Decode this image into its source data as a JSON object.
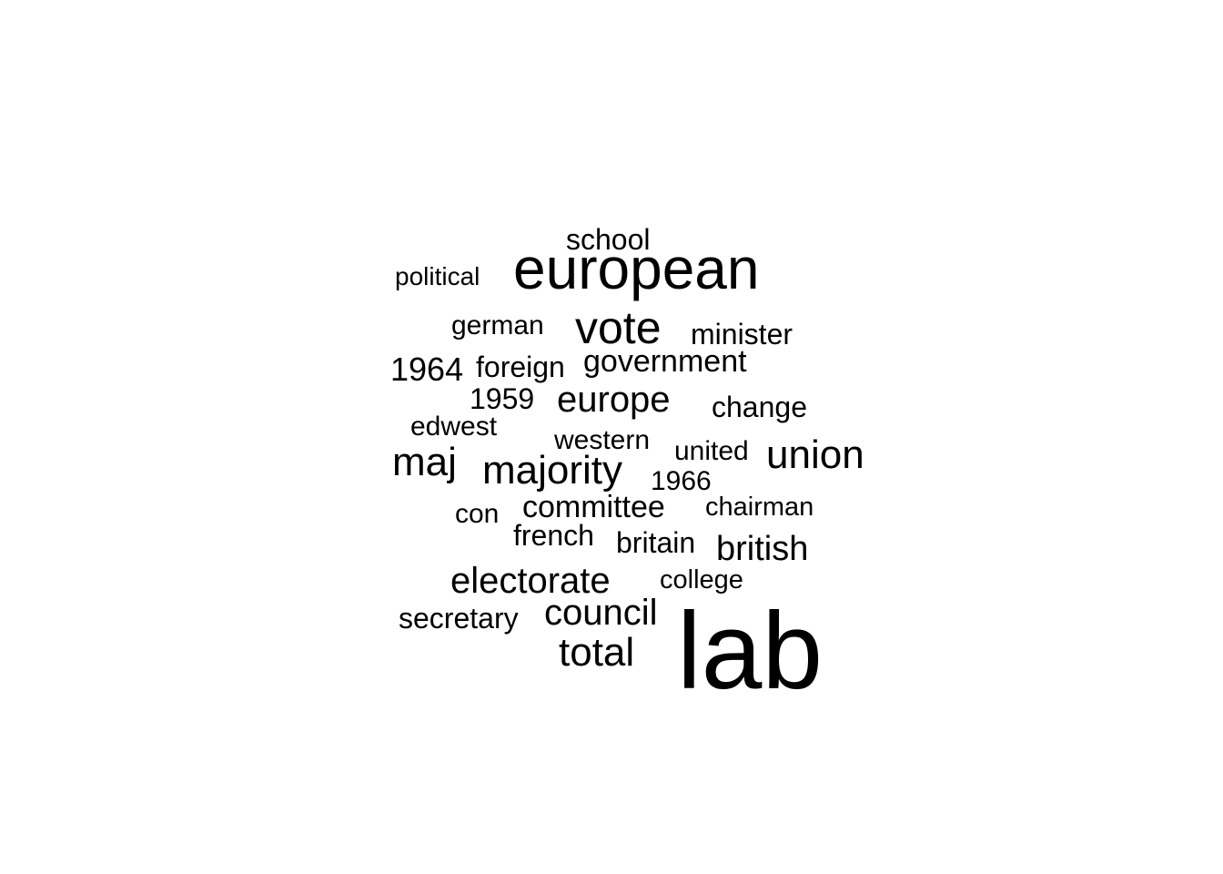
{
  "chart_data": {
    "type": "wordcloud",
    "color": "#000000",
    "words": [
      {
        "text": "lab",
        "weight": 120
      },
      {
        "text": "european",
        "weight": 64
      },
      {
        "text": "vote",
        "weight": 50
      },
      {
        "text": "union",
        "weight": 44
      },
      {
        "text": "maj",
        "weight": 44
      },
      {
        "text": "majority",
        "weight": 44
      },
      {
        "text": "total",
        "weight": 44
      },
      {
        "text": "electorate",
        "weight": 40
      },
      {
        "text": "europe",
        "weight": 40
      },
      {
        "text": "council",
        "weight": 40
      },
      {
        "text": "british",
        "weight": 38
      },
      {
        "text": "1964",
        "weight": 36
      },
      {
        "text": "committee",
        "weight": 34
      },
      {
        "text": "government",
        "weight": 34
      },
      {
        "text": "change",
        "weight": 32
      },
      {
        "text": "minister",
        "weight": 32
      },
      {
        "text": "school",
        "weight": 32
      },
      {
        "text": "foreign",
        "weight": 32
      },
      {
        "text": "1959",
        "weight": 32
      },
      {
        "text": "french",
        "weight": 32
      },
      {
        "text": "britain",
        "weight": 32
      },
      {
        "text": "secretary",
        "weight": 32
      },
      {
        "text": "united",
        "weight": 30
      },
      {
        "text": "edwest",
        "weight": 30
      },
      {
        "text": "german",
        "weight": 30
      },
      {
        "text": "western",
        "weight": 30
      },
      {
        "text": "con",
        "weight": 30
      },
      {
        "text": "1966",
        "weight": 30
      },
      {
        "text": "chairman",
        "weight": 29
      },
      {
        "text": "college",
        "weight": 29
      },
      {
        "text": "political",
        "weight": 28
      }
    ]
  }
}
